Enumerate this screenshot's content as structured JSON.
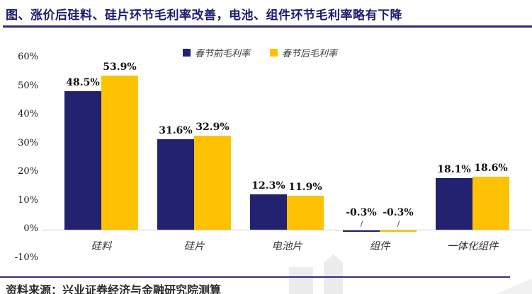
{
  "title": "图、涨价后硅料、硅片环节毛利率改善，电池、组件环节毛利率略有下降",
  "source_note": "资料来源：兴业证券经济与金融研究院测算",
  "colors": {
    "series_pre": "#232270",
    "series_post": "#FFC103",
    "title_text": "#1b1b6e",
    "accent_line": "#2a2a78",
    "axis_line": "#c9c9c9"
  },
  "chart_data": {
    "type": "bar",
    "title": "",
    "xlabel": "",
    "ylabel": "",
    "categories": [
      "硅料",
      "硅片",
      "电池片",
      "组件",
      "一体化组件"
    ],
    "series": [
      {
        "name": "春节前毛利率",
        "color": "#232270",
        "values": [
          48.5,
          31.6,
          12.3,
          -0.3,
          18.1
        ]
      },
      {
        "name": "春节后毛利率",
        "color": "#FFC103",
        "values": [
          53.9,
          32.9,
          11.9,
          -0.3,
          18.6
        ]
      }
    ],
    "data_labels": [
      [
        "48.5%",
        "31.6%",
        "12.3%",
        "-0.3%",
        "18.1%"
      ],
      [
        "53.9%",
        "32.9%",
        "11.9%",
        "-0.3%",
        "18.6%"
      ]
    ],
    "ylim": [
      -10,
      60
    ],
    "yticks": [
      60,
      50,
      40,
      30,
      20,
      10,
      0,
      -10
    ],
    "ytick_labels": [
      "60%",
      "50%",
      "40%",
      "30%",
      "20%",
      "10%",
      "0%",
      "-10%"
    ],
    "legend_position": "top",
    "grid": false
  }
}
